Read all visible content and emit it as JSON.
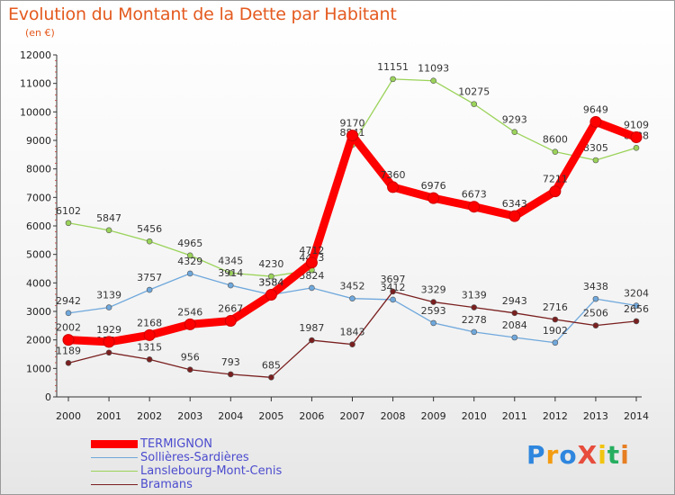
{
  "header": {
    "title": "Evolution du Montant de la Dette par Habitant",
    "unit": "(en €)"
  },
  "logo": {
    "text": "ProXiti"
  },
  "chart_data": {
    "type": "line",
    "title": "Evolution du Montant de la Dette par Habitant",
    "ylabel": "(en €)",
    "xlabel": "",
    "ylim": [
      0,
      12000
    ],
    "yticks": [
      0,
      1000,
      2000,
      3000,
      4000,
      5000,
      6000,
      7000,
      8000,
      9000,
      10000,
      11000,
      12000
    ],
    "x": [
      2000,
      2001,
      2002,
      2003,
      2004,
      2005,
      2006,
      2007,
      2008,
      2009,
      2010,
      2011,
      2012,
      2013,
      2014
    ],
    "grid": false,
    "legend_position": "bottom-left",
    "series": [
      {
        "name": "Sollières-Sardières",
        "color": "#6fa8dc",
        "values": [
          2942,
          3139,
          3757,
          4329,
          3914,
          3584,
          3824,
          3452,
          3412,
          2593,
          2278,
          2084,
          1902,
          3438,
          3204
        ]
      },
      {
        "name": "Lanslebourg-Mont-Cenis",
        "color": "#9bd35a",
        "values": [
          6102,
          5847,
          5456,
          4965,
          4345,
          4230,
          4453,
          8841,
          11151,
          11093,
          10275,
          9293,
          8600,
          8305,
          8738
        ]
      },
      {
        "name": "Bramans",
        "color": "#7a1f1f",
        "values": [
          1189,
          1554,
          1315,
          956,
          793,
          685,
          1987,
          1843,
          3697,
          3329,
          3139,
          2943,
          2716,
          2506,
          2656
        ]
      },
      {
        "name": "TERMIGNON",
        "color": "#ff0000",
        "values": [
          2002,
          1929,
          2168,
          2546,
          2667,
          3584,
          4712,
          9170,
          7360,
          6976,
          6673,
          6343,
          7211,
          9649,
          9109
        ]
      }
    ]
  }
}
